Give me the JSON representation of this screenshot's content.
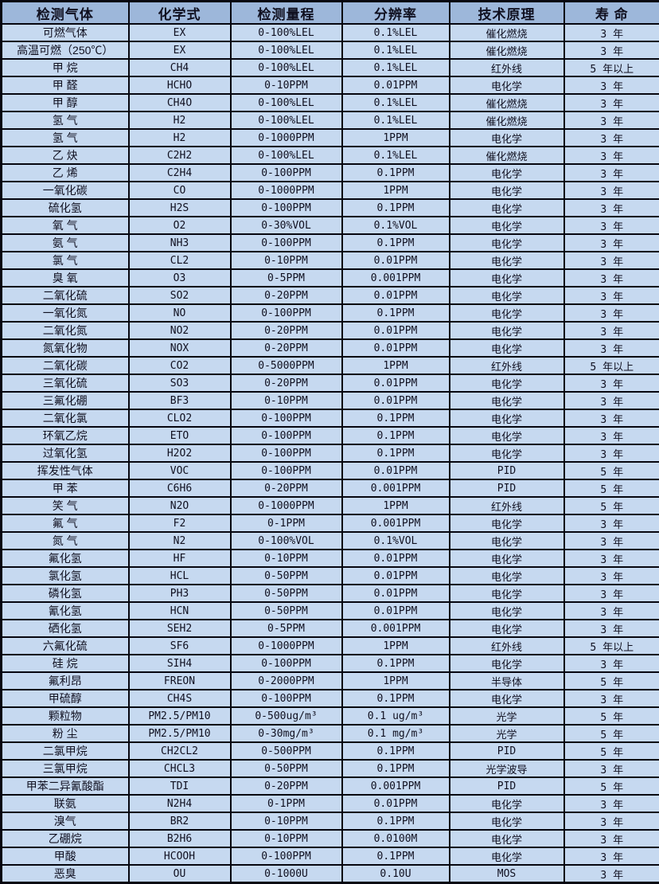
{
  "colors": {
    "header_bg": "#9db7da",
    "row_bg": "#c6d9f0",
    "border": "#06060f",
    "text": "#101020"
  },
  "table": {
    "headers": [
      "检测气体",
      "化学式",
      "检测量程",
      "分辨率",
      "技术原理",
      "寿 命"
    ],
    "rows": [
      [
        "可燃气体",
        "EX",
        "0-100%LEL",
        "0.1%LEL",
        "催化燃烧",
        "3 年"
      ],
      [
        "高温可燃（250℃）",
        "EX",
        "0-100%LEL",
        "0.1%LEL",
        "催化燃烧",
        "3 年"
      ],
      [
        "甲 烷",
        "CH4",
        "0-100%LEL",
        "0.1%LEL",
        "红外线",
        "5 年以上"
      ],
      [
        "甲 醛",
        "HCHO",
        "0-10PPM",
        "0.01PPM",
        "电化学",
        "3 年"
      ],
      [
        "甲 醇",
        "CH4O",
        "0-100%LEL",
        "0.1%LEL",
        "催化燃烧",
        "3 年"
      ],
      [
        "氢 气",
        "H2",
        "0-100%LEL",
        "0.1%LEL",
        "催化燃烧",
        "3 年"
      ],
      [
        "氢 气",
        "H2",
        "0-1000PPM",
        "1PPM",
        "电化学",
        "3 年"
      ],
      [
        "乙 炔",
        "C2H2",
        "0-100%LEL",
        "0.1%LEL",
        "催化燃烧",
        "3 年"
      ],
      [
        "乙 烯",
        "C2H4",
        "0-100PPM",
        "0.1PPM",
        "电化学",
        "3 年"
      ],
      [
        "一氧化碳",
        "CO",
        "0-1000PPM",
        "1PPM",
        "电化学",
        "3 年"
      ],
      [
        "硫化氢",
        "H2S",
        "0-100PPM",
        "0.1PPM",
        "电化学",
        "3 年"
      ],
      [
        "氧 气",
        "O2",
        "0-30%VOL",
        "0.1%VOL",
        "电化学",
        "3 年"
      ],
      [
        "氨 气",
        "NH3",
        "0-100PPM",
        "0.1PPM",
        "电化学",
        "3 年"
      ],
      [
        "氯 气",
        "CL2",
        "0-10PPM",
        "0.01PPM",
        "电化学",
        "3 年"
      ],
      [
        "臭 氧",
        "O3",
        "0-5PPM",
        "0.001PPM",
        "电化学",
        "3 年"
      ],
      [
        "二氧化硫",
        "SO2",
        "0-20PPM",
        "0.01PPM",
        "电化学",
        "3 年"
      ],
      [
        "一氧化氮",
        "NO",
        "0-100PPM",
        "0.1PPM",
        "电化学",
        "3 年"
      ],
      [
        "二氧化氮",
        "NO2",
        "0-20PPM",
        "0.01PPM",
        "电化学",
        "3 年"
      ],
      [
        "氮氧化物",
        "NOX",
        "0-20PPM",
        "0.01PPM",
        "电化学",
        "3 年"
      ],
      [
        "二氧化碳",
        "CO2",
        "0-5000PPM",
        "1PPM",
        "红外线",
        "5 年以上"
      ],
      [
        "三氧化硫",
        "SO3",
        "0-20PPM",
        "0.01PPM",
        "电化学",
        "3 年"
      ],
      [
        "三氟化硼",
        "BF3",
        "0-10PPM",
        "0.01PPM",
        "电化学",
        "3 年"
      ],
      [
        "二氧化氯",
        "CLO2",
        "0-100PPM",
        "0.1PPM",
        "电化学",
        "3 年"
      ],
      [
        "环氧乙烷",
        "ETO",
        "0-100PPM",
        "0.1PPM",
        "电化学",
        "3 年"
      ],
      [
        "过氧化氢",
        "H2O2",
        "0-100PPM",
        "0.1PPM",
        "电化学",
        "3 年"
      ],
      [
        "挥发性气体",
        "VOC",
        "0-100PPM",
        "0.01PPM",
        "PID",
        "5 年"
      ],
      [
        "甲 苯",
        "C6H6",
        "0-20PPM",
        "0.001PPM",
        "PID",
        "5 年"
      ],
      [
        "笑 气",
        "N2O",
        "0-1000PPM",
        "1PPM",
        "红外线",
        "5 年"
      ],
      [
        "氟 气",
        "F2",
        "0-1PPM",
        "0.001PPM",
        "电化学",
        "3 年"
      ],
      [
        "氮 气",
        "N2",
        "0-100%VOL",
        "0.1%VOL",
        "电化学",
        "3 年"
      ],
      [
        "氟化氢",
        "HF",
        "0-10PPM",
        "0.01PPM",
        "电化学",
        "3 年"
      ],
      [
        "氯化氢",
        "HCL",
        "0-50PPM",
        "0.01PPM",
        "电化学",
        "3 年"
      ],
      [
        "磷化氢",
        "PH3",
        "0-50PPM",
        "0.01PPM",
        "电化学",
        "3 年"
      ],
      [
        "氰化氢",
        "HCN",
        "0-50PPM",
        "0.01PPM",
        "电化学",
        "3 年"
      ],
      [
        "硒化氢",
        "SEH2",
        "0-5PPM",
        "0.001PPM",
        "电化学",
        "3 年"
      ],
      [
        "六氟化硫",
        "SF6",
        "0-1000PPM",
        "1PPM",
        "红外线",
        "5 年以上"
      ],
      [
        "硅 烷",
        "SIH4",
        "0-100PPM",
        "0.1PPM",
        "电化学",
        "3 年"
      ],
      [
        "氟利昂",
        "FREON",
        "0-2000PPM",
        "1PPM",
        "半导体",
        "5 年"
      ],
      [
        "甲硫醇",
        "CH4S",
        "0-100PPM",
        "0.1PPM",
        "电化学",
        "3 年"
      ],
      [
        "颗粒物",
        "PM2.5/PM10",
        "0-500ug/m³",
        "0.1 ug/m³",
        "光学",
        "5 年"
      ],
      [
        "粉 尘",
        "PM2.5/PM10",
        "0-30mg/m³",
        "0.1 mg/m³",
        "光学",
        "5 年"
      ],
      [
        "二氯甲烷",
        "CH2CL2",
        "0-500PPM",
        "0.1PPM",
        "PID",
        "5 年"
      ],
      [
        "三氯甲烷",
        "CHCL3",
        "0-50PPM",
        "0.1PPM",
        "光学波导",
        "3 年"
      ],
      [
        "甲苯二异氰酸酯",
        "TDI",
        "0-20PPM",
        "0.001PPM",
        "PID",
        "5 年"
      ],
      [
        "联氨",
        "N2H4",
        "0-1PPM",
        "0.01PPM",
        "电化学",
        "3 年"
      ],
      [
        "溴气",
        "BR2",
        "0-10PPM",
        "0.1PPM",
        "电化学",
        "3 年"
      ],
      [
        "乙硼烷",
        "B2H6",
        "0-10PPM",
        "0.0100M",
        "电化学",
        "3 年"
      ],
      [
        "甲酸",
        "HCOOH",
        "0-100PPM",
        "0.1PPM",
        "电化学",
        "3 年"
      ],
      [
        "恶臭",
        "OU",
        "0-1000U",
        "0.10U",
        "MOS",
        "3 年"
      ]
    ]
  }
}
